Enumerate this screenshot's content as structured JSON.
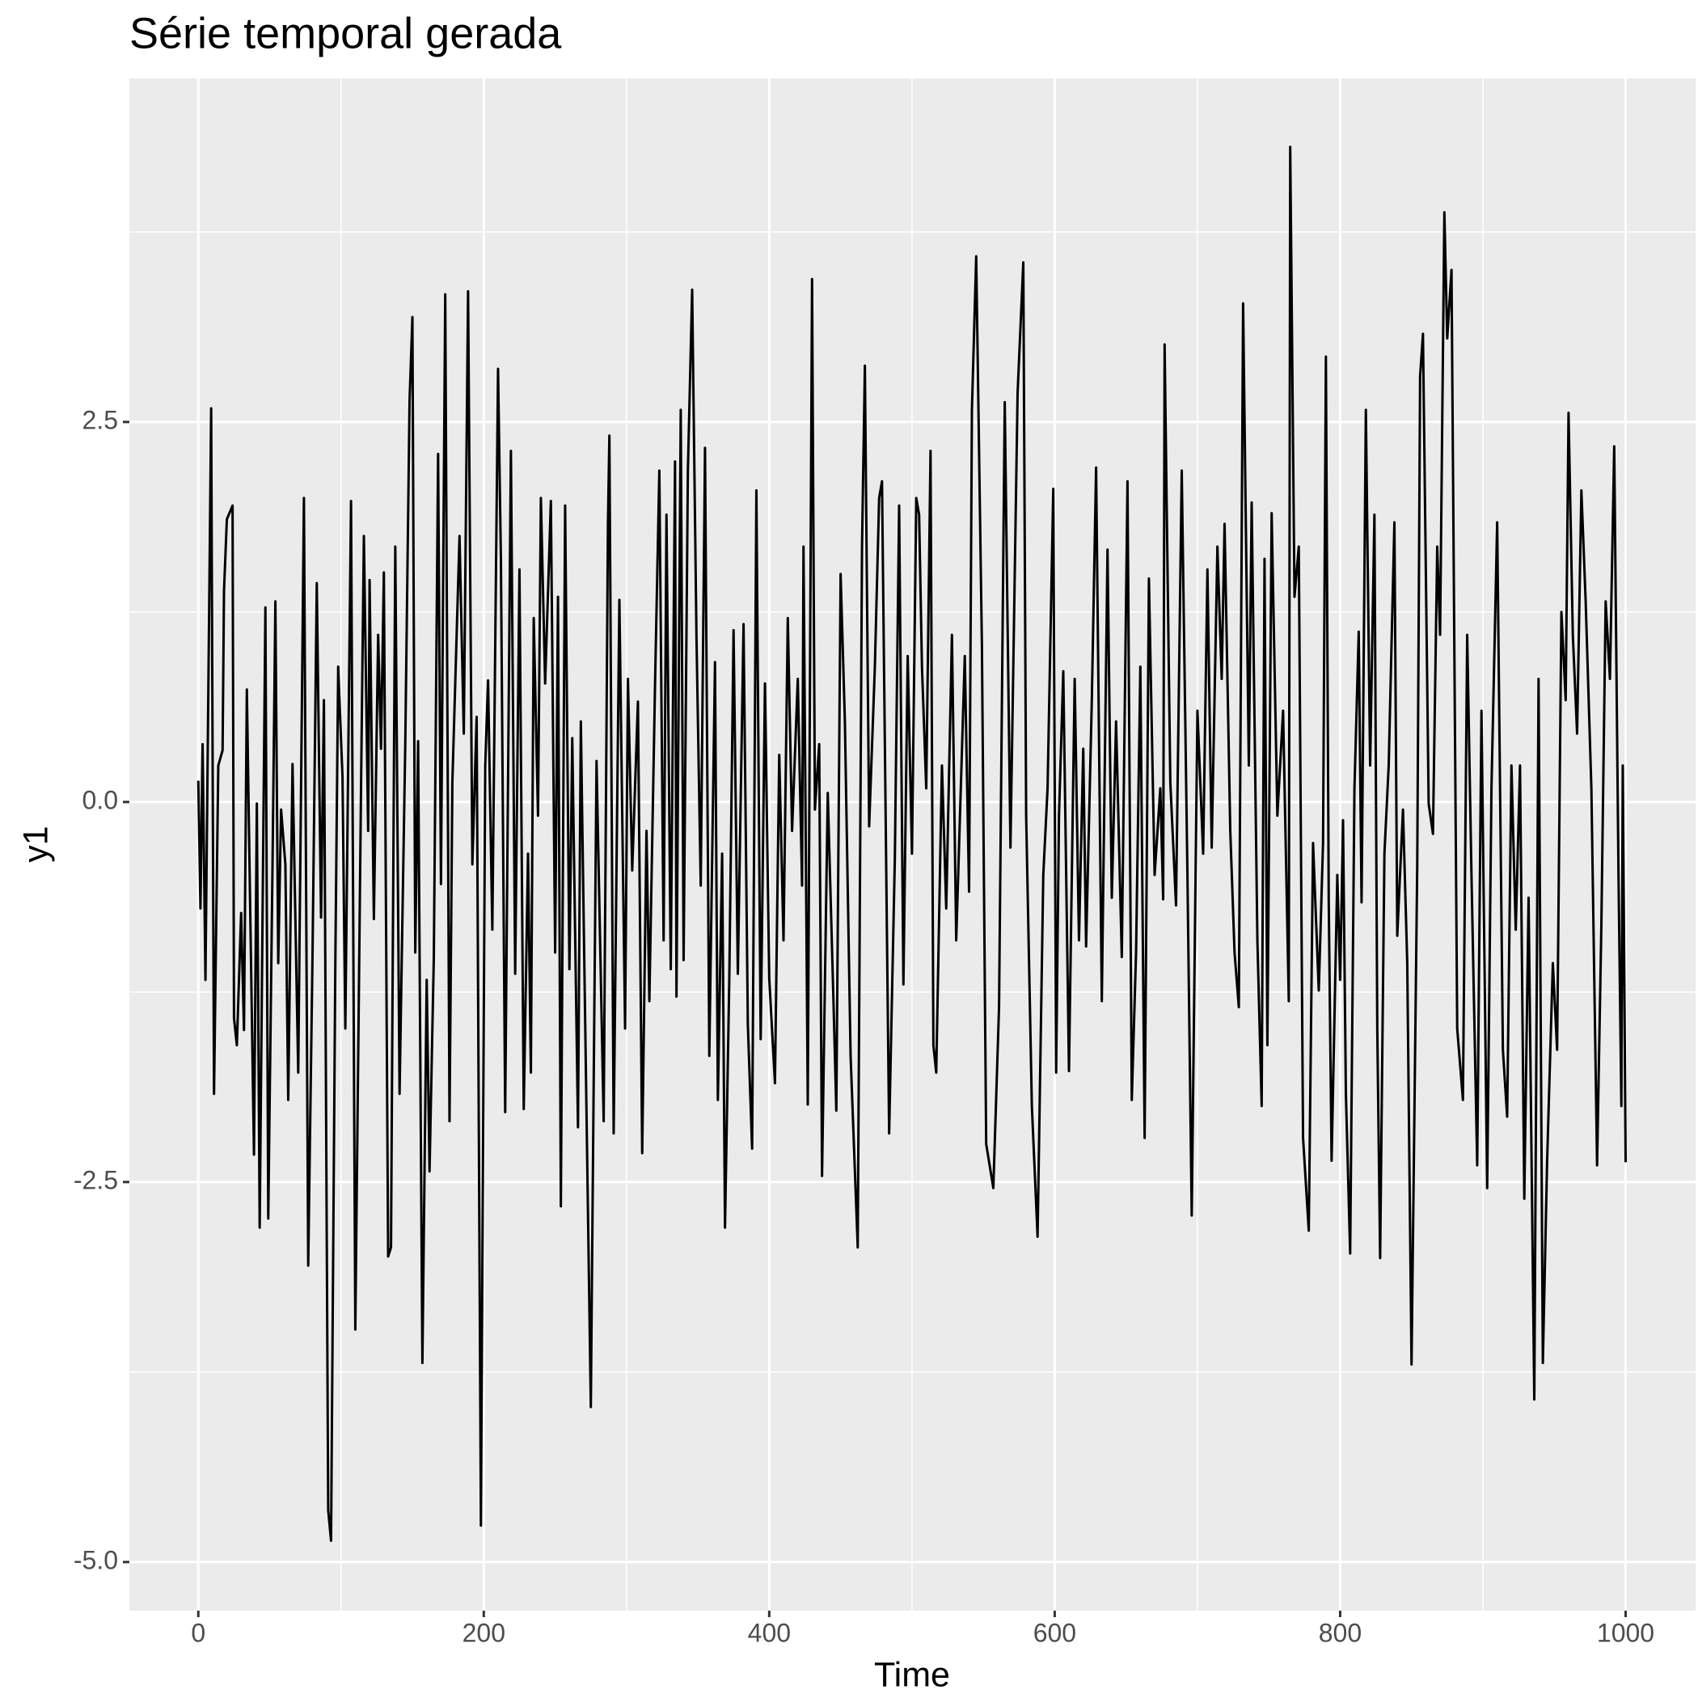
{
  "chart_data": {
    "type": "line",
    "title": "Série temporal gerada",
    "x_label": "Time",
    "y_label": "y1",
    "x": [
      0,
      1.5,
      3,
      5,
      9,
      11,
      14,
      17,
      18,
      20,
      24,
      25,
      27,
      30,
      32,
      34,
      39,
      41,
      43,
      47,
      49,
      52,
      54,
      56,
      58,
      61,
      63,
      66,
      70,
      74,
      77,
      80,
      83,
      86,
      88,
      91,
      93,
      96,
      98,
      101,
      103,
      107,
      110,
      114,
      116,
      119,
      120,
      123,
      126,
      128,
      130,
      133,
      135,
      138,
      141,
      145,
      148,
      150,
      152,
      154,
      157,
      160,
      162,
      165,
      168,
      170,
      173,
      176,
      178,
      183,
      186,
      189,
      192,
      195,
      198,
      201,
      203,
      206,
      210,
      212,
      215,
      219,
      222,
      225,
      228,
      231,
      233,
      235,
      238,
      240,
      243,
      247,
      250,
      252,
      254,
      257,
      260,
      262,
      266,
      268,
      271,
      275,
      279,
      284,
      287,
      288,
      291,
      295,
      299,
      301,
      304,
      308,
      311,
      314,
      316,
      320,
      323,
      326,
      328,
      331,
      334,
      335,
      338,
      340,
      343,
      346,
      349,
      352,
      355,
      358,
      362,
      364,
      367,
      369,
      372,
      375,
      378,
      382,
      385,
      388,
      391,
      394,
      397,
      400,
      404,
      407,
      410,
      413,
      416,
      420,
      423,
      424,
      427,
      430,
      432,
      435,
      437,
      441,
      445,
      447,
      450,
      453,
      457,
      462,
      465,
      467,
      470,
      474,
      477,
      479,
      482,
      484,
      488,
      491,
      494,
      497,
      500,
      503,
      505,
      507,
      510,
      513,
      515,
      517,
      521,
      524,
      528,
      531,
      537,
      540,
      542,
      545,
      549,
      552,
      557,
      561,
      565,
      569,
      574,
      578,
      580,
      584,
      588,
      592,
      595,
      599,
      601,
      603,
      606,
      610,
      614,
      617,
      620,
      622,
      626,
      629,
      633,
      637,
      640,
      643,
      647,
      651,
      654,
      657,
      660,
      663,
      666,
      670,
      674,
      676,
      677,
      681,
      685,
      689,
      693,
      696,
      700,
      704,
      707,
      710,
      714,
      717,
      719,
      723,
      726,
      729,
      732,
      736,
      738,
      742,
      745,
      747,
      749,
      752,
      756,
      760,
      764,
      765,
      768,
      771,
      774,
      778,
      781,
      785,
      788,
      790,
      792,
      794,
      798,
      800,
      802,
      804,
      807,
      810,
      813,
      815,
      818,
      821,
      824,
      826,
      828,
      831,
      834,
      838,
      840,
      844,
      847,
      850,
      854,
      856,
      858,
      862,
      865,
      868,
      870,
      873,
      875,
      878,
      882,
      886,
      889,
      892,
      896,
      899,
      903,
      906,
      910,
      914,
      917,
      920,
      923,
      926,
      929,
      932,
      936,
      939,
      942,
      945,
      949,
      952,
      955,
      958,
      960,
      963,
      966,
      969,
      972,
      976,
      980,
      983,
      986,
      989,
      992,
      995,
      997,
      998,
      1000
    ],
    "values": [
      0.14,
      -0.7,
      0.38,
      -1.17,
      2.59,
      -1.92,
      0.24,
      0.34,
      1.39,
      1.86,
      1.95,
      -1.42,
      -1.6,
      -0.73,
      -1.5,
      0.74,
      -2.32,
      -0.01,
      -2.8,
      1.28,
      -2.74,
      -0.41,
      1.32,
      -1.06,
      -0.05,
      -0.41,
      -1.96,
      0.25,
      -1.78,
      2.0,
      -3.05,
      -1.02,
      1.44,
      -0.76,
      0.67,
      -4.66,
      -4.86,
      -1.06,
      0.89,
      0.17,
      -1.49,
      1.98,
      -3.47,
      0.09,
      1.75,
      -0.19,
      1.46,
      -0.77,
      1.1,
      0.35,
      1.51,
      -2.99,
      -2.93,
      1.68,
      -1.92,
      0.38,
      2.64,
      3.19,
      -0.99,
      0.4,
      -3.69,
      -1.17,
      -2.43,
      -1.02,
      2.29,
      -0.54,
      3.34,
      -2.1,
      0.13,
      1.75,
      0.45,
      3.36,
      -0.41,
      0.56,
      -4.76,
      0.24,
      0.8,
      -0.84,
      2.85,
      1.6,
      -2.04,
      2.31,
      -1.13,
      1.53,
      -2.02,
      -0.34,
      -1.78,
      1.21,
      -0.09,
      2.0,
      0.78,
      1.98,
      -0.99,
      1.35,
      -2.66,
      1.95,
      -1.1,
      0.42,
      -2.14,
      0.53,
      -1.42,
      -3.98,
      0.27,
      -2.1,
      1.84,
      2.41,
      -2.18,
      1.33,
      -1.49,
      0.81,
      -0.45,
      0.66,
      -2.31,
      -0.19,
      -1.31,
      0.78,
      2.18,
      -0.91,
      1.89,
      -1.1,
      2.24,
      -1.28,
      2.58,
      -1.04,
      2.18,
      3.37,
      1.1,
      -0.55,
      2.33,
      -1.67,
      0.92,
      -1.96,
      -0.34,
      -2.8,
      -1.17,
      1.13,
      -1.13,
      1.17,
      -1.46,
      -2.28,
      2.05,
      -1.56,
      0.78,
      -1.16,
      -1.85,
      0.31,
      -0.91,
      1.21,
      -0.19,
      0.81,
      -0.55,
      1.68,
      -1.99,
      3.44,
      -0.05,
      0.38,
      -2.46,
      0.06,
      -1.31,
      -2.03,
      1.5,
      0.53,
      -1.67,
      -2.93,
      1.68,
      2.87,
      -0.16,
      0.89,
      2.0,
      2.11,
      -0.48,
      -2.18,
      -0.37,
      1.95,
      -1.2,
      0.96,
      -0.34,
      2.0,
      1.89,
      0.89,
      0.09,
      2.31,
      -1.6,
      -1.78,
      0.24,
      -0.7,
      1.1,
      -0.91,
      0.96,
      -0.59,
      2.58,
      3.59,
      1.03,
      -2.25,
      -2.54,
      -1.35,
      2.63,
      -0.3,
      2.69,
      3.55,
      -0.09,
      -2.0,
      -2.86,
      -0.48,
      0.09,
      2.06,
      -1.78,
      -0.09,
      0.86,
      -1.77,
      0.81,
      -0.91,
      0.35,
      -0.95,
      0.67,
      2.2,
      -1.31,
      1.66,
      -0.63,
      0.53,
      -1.02,
      2.11,
      -1.96,
      -0.99,
      0.89,
      -2.21,
      1.47,
      -0.48,
      0.09,
      -0.64,
      3.01,
      0.13,
      -0.68,
      2.18,
      -0.48,
      -2.72,
      0.6,
      -0.34,
      1.53,
      -0.3,
      1.68,
      0.81,
      1.83,
      -0.19,
      -0.99,
      -1.35,
      3.28,
      0.24,
      1.97,
      -0.91,
      -2.0,
      1.6,
      -1.6,
      1.9,
      -0.09,
      0.6,
      -1.31,
      4.31,
      1.35,
      1.68,
      -2.21,
      -2.82,
      -0.27,
      -1.24,
      -0.27,
      2.93,
      -0.66,
      -2.36,
      -0.48,
      -1.17,
      -0.12,
      -1.92,
      -2.97,
      0.09,
      1.12,
      -0.66,
      2.58,
      0.24,
      1.89,
      -1.49,
      -3.0,
      -0.34,
      0.24,
      1.84,
      -0.88,
      -0.05,
      -1.06,
      -3.7,
      -0.41,
      2.8,
      3.08,
      -0.01,
      -0.21,
      1.68,
      1.1,
      3.88,
      3.05,
      3.5,
      -1.49,
      -1.96,
      1.1,
      -0.48,
      -2.39,
      0.6,
      -2.54,
      0.09,
      1.84,
      -1.63,
      -2.07,
      0.24,
      -0.84,
      0.24,
      -2.61,
      -0.63,
      -3.93,
      0.81,
      -3.69,
      -2.36,
      -1.06,
      -1.63,
      1.25,
      0.67,
      2.56,
      1.1,
      0.45,
      2.05,
      1.32,
      0.09,
      -2.39,
      -0.81,
      1.32,
      0.81,
      2.34,
      -0.48,
      -2.0,
      0.24,
      -2.37
    ],
    "color": "#000000",
    "xlim": [
      -48.3,
      1049
    ],
    "ylim": [
      -5.32,
      4.76
    ],
    "xticks": [
      0,
      200,
      400,
      600,
      800,
      1000
    ],
    "yticks": [
      {
        "value": -5,
        "label": "-5.0"
      },
      {
        "value": -2.5,
        "label": "-2.5"
      },
      {
        "value": 0,
        "label": "0.0"
      },
      {
        "value": 2.5,
        "label": "2.5"
      }
    ],
    "xminor": [
      100,
      300,
      500,
      700,
      900
    ],
    "yminor": [
      -3.75,
      -1.25,
      1.25,
      3.75
    ],
    "grid": true
  }
}
